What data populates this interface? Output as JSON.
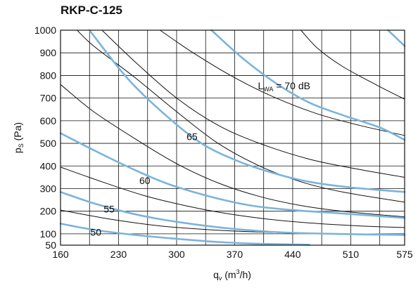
{
  "chart_data": {
    "type": "line",
    "title": "RKP-C-125",
    "xlabel": "q_v (m³/h)",
    "ylabel": "p_S (Pa)",
    "xlabel_parts": {
      "base": "q",
      "sub": "v",
      "unit_pre": " (m",
      "sup": "3",
      "unit_post": "/h)"
    },
    "ylabel_parts": {
      "base": "p",
      "sub": "S",
      "unit": " (Pa)"
    },
    "xlim": [
      160,
      575
    ],
    "ylim": [
      50,
      1000
    ],
    "xticks": [
      160,
      230,
      300,
      370,
      440,
      510,
      575
    ],
    "yticks": [
      50,
      100,
      200,
      300,
      400,
      500,
      600,
      700,
      800,
      900,
      1000
    ],
    "grid": true,
    "colors": {
      "blue": "#7ab4db",
      "black": "#111111",
      "label_bg": "#bcbcbc"
    },
    "black_series": [
      [
        [
          160,
          760
        ],
        [
          200,
          640
        ],
        [
          250,
          520
        ],
        [
          300,
          410
        ],
        [
          350,
          325
        ],
        [
          400,
          265
        ],
        [
          450,
          225
        ],
        [
          500,
          200
        ],
        [
          575,
          175
        ]
      ],
      [
        [
          160,
          395
        ],
        [
          210,
          330
        ],
        [
          260,
          270
        ],
        [
          310,
          225
        ],
        [
          360,
          190
        ],
        [
          410,
          165
        ],
        [
          460,
          148
        ],
        [
          520,
          135
        ],
        [
          575,
          128
        ]
      ],
      [
        [
          160,
          205
        ],
        [
          220,
          165
        ],
        [
          280,
          135
        ],
        [
          340,
          118
        ],
        [
          400,
          108
        ],
        [
          460,
          102
        ],
        [
          520,
          99
        ],
        [
          575,
          97
        ]
      ],
      [
        [
          210,
          1000
        ],
        [
          250,
          860
        ],
        [
          300,
          700
        ],
        [
          350,
          580
        ],
        [
          400,
          500
        ],
        [
          460,
          430
        ],
        [
          520,
          385
        ],
        [
          575,
          350
        ]
      ],
      [
        [
          280,
          1000
        ],
        [
          320,
          900
        ],
        [
          370,
          790
        ],
        [
          420,
          700
        ],
        [
          470,
          630
        ],
        [
          520,
          580
        ],
        [
          575,
          535
        ]
      ],
      [
        [
          180,
          1000
        ],
        [
          200,
          930
        ],
        [
          250,
          790
        ],
        [
          300,
          640
        ],
        [
          350,
          500
        ],
        [
          400,
          400
        ],
        [
          450,
          330
        ],
        [
          500,
          285
        ],
        [
          575,
          240
        ]
      ],
      [
        [
          450,
          1000
        ],
        [
          470,
          920
        ],
        [
          500,
          840
        ],
        [
          540,
          760
        ],
        [
          575,
          695
        ]
      ]
    ],
    "blue_series": [
      [
        [
          195,
          1000
        ],
        [
          240,
          790
        ],
        [
          285,
          630
        ],
        [
          330,
          500
        ],
        [
          375,
          420
        ],
        [
          420,
          365
        ],
        [
          460,
          330
        ],
        [
          510,
          305
        ],
        [
          575,
          285
        ]
      ],
      [
        [
          160,
          545
        ],
        [
          200,
          470
        ],
        [
          245,
          390
        ],
        [
          290,
          320
        ],
        [
          340,
          265
        ],
        [
          390,
          225
        ],
        [
          440,
          205
        ],
        [
          500,
          190
        ],
        [
          575,
          170
        ]
      ],
      [
        [
          160,
          285
        ],
        [
          200,
          235
        ],
        [
          240,
          195
        ],
        [
          280,
          165
        ],
        [
          330,
          138
        ],
        [
          380,
          118
        ],
        [
          430,
          106
        ],
        [
          500,
          99
        ],
        [
          575,
          95
        ]
      ],
      [
        [
          160,
          145
        ],
        [
          200,
          118
        ],
        [
          250,
          95
        ],
        [
          300,
          78
        ],
        [
          350,
          64
        ],
        [
          400,
          56
        ],
        [
          460,
          52
        ]
      ],
      [
        [
          342,
          1000
        ],
        [
          380,
          875
        ],
        [
          420,
          765
        ],
        [
          460,
          680
        ],
        [
          500,
          625
        ],
        [
          545,
          570
        ],
        [
          575,
          515
        ]
      ],
      [
        [
          555,
          1000
        ],
        [
          575,
          930
        ]
      ]
    ],
    "annotations": [
      {
        "text": "50",
        "x": 196,
        "y": 108
      },
      {
        "text": "55",
        "x": 212,
        "y": 210
      },
      {
        "text": "60",
        "x": 255,
        "y": 335
      },
      {
        "text": "65",
        "x": 312,
        "y": 530
      },
      {
        "text_parts": {
          "base": "L",
          "sub": "WA",
          "rest": " = 70 dB"
        },
        "x": 398,
        "y": 755
      }
    ]
  }
}
